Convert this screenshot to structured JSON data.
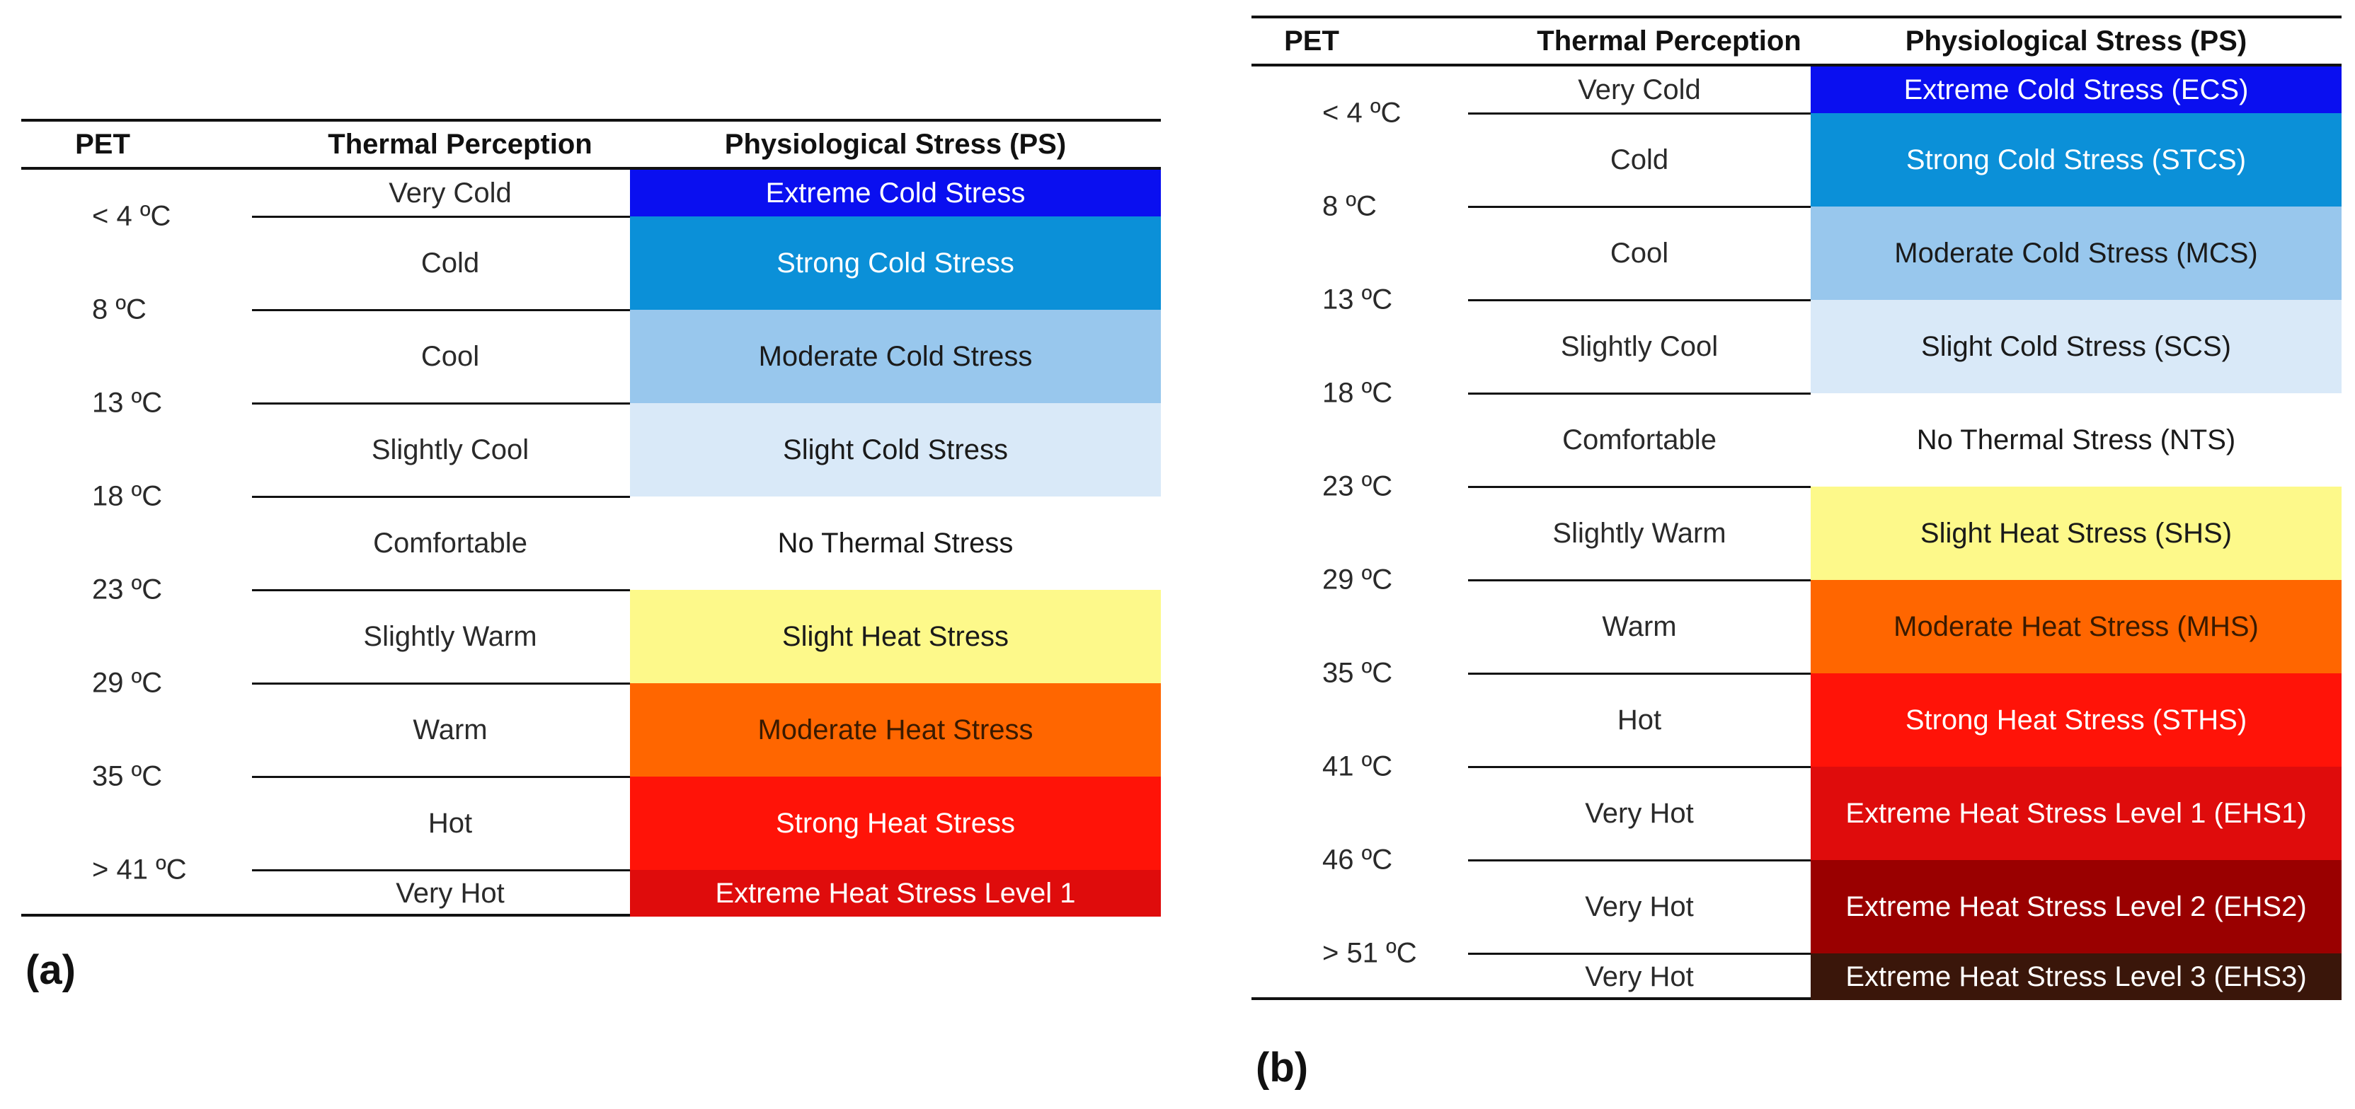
{
  "panel_a": {
    "label": "(a)",
    "headers": {
      "pet": "PET",
      "perception": "Thermal Perception",
      "stress": "Physiological Stress (PS)"
    },
    "rows": [
      {
        "perception": "Very Cold",
        "stress": "Extreme Cold Stress",
        "color": "#0a0ff0",
        "text_color": "#ffffff"
      },
      {
        "perception": "Cold",
        "stress": "Strong Cold Stress",
        "color": "#0b90d8",
        "text_color": "#ffffff"
      },
      {
        "perception": "Cool",
        "stress": "Moderate Cold Stress",
        "color": "#98c7ed",
        "text_color": "#1a1a1a"
      },
      {
        "perception": "Slightly Cool",
        "stress": "Slight Cold Stress",
        "color": "#d9e9f8",
        "text_color": "#1a1a1a"
      },
      {
        "perception": "Comfortable",
        "stress": "No Thermal Stress",
        "color": "#ffffff",
        "text_color": "#1a1a1a"
      },
      {
        "perception": "Slightly Warm",
        "stress": "Slight Heat Stress",
        "color": "#fdf98a",
        "text_color": "#1a1a1a"
      },
      {
        "perception": "Warm",
        "stress": "Moderate Heat Stress",
        "color": "#ff6600",
        "text_color": "#3a1a00"
      },
      {
        "perception": "Hot",
        "stress": "Strong Heat Stress",
        "color": "#ff1308",
        "text_color": "#ffffff"
      },
      {
        "perception": "Very Hot",
        "stress": "Extreme Heat Stress Level 1",
        "color": "#df0c0c",
        "text_color": "#ffffff"
      }
    ],
    "pet_thresholds": [
      "< 4 ºC",
      "8 ºC",
      "13 ºC",
      "18 ºC",
      "23 ºC",
      "29 ºC",
      "35 ºC",
      "> 41 ºC"
    ]
  },
  "panel_b": {
    "label": "(b)",
    "headers": {
      "pet": "PET",
      "perception": "Thermal Perception",
      "stress": "Physiological Stress (PS)"
    },
    "rows": [
      {
        "perception": "Very Cold",
        "stress": "Extreme Cold Stress (ECS)",
        "color": "#0a0ff0",
        "text_color": "#ffffff"
      },
      {
        "perception": "Cold",
        "stress": "Strong Cold Stress (STCS)",
        "color": "#0b90d8",
        "text_color": "#ffffff"
      },
      {
        "perception": "Cool",
        "stress": "Moderate Cold Stress (MCS)",
        "color": "#98c7ed",
        "text_color": "#1a1a1a"
      },
      {
        "perception": "Slightly Cool",
        "stress": "Slight Cold Stress (SCS)",
        "color": "#d9e9f8",
        "text_color": "#1a1a1a"
      },
      {
        "perception": "Comfortable",
        "stress": "No Thermal Stress (NTS)",
        "color": "#ffffff",
        "text_color": "#1a1a1a"
      },
      {
        "perception": "Slightly Warm",
        "stress": "Slight Heat Stress (SHS)",
        "color": "#fdf98a",
        "text_color": "#1a1a1a"
      },
      {
        "perception": "Warm",
        "stress": "Moderate Heat Stress (MHS)",
        "color": "#ff6600",
        "text_color": "#3a1a00"
      },
      {
        "perception": "Hot",
        "stress": "Strong Heat Stress (STHS)",
        "color": "#ff1308",
        "text_color": "#ffffff"
      },
      {
        "perception": "Very Hot",
        "stress": "Extreme Heat Stress Level 1 (EHS1)",
        "color": "#df0c0c",
        "text_color": "#ffffff"
      },
      {
        "perception": "Very Hot",
        "stress": "Extreme Heat Stress Level 2 (EHS2)",
        "color": "#9a0000",
        "text_color": "#ffffff"
      },
      {
        "perception": "Very Hot",
        "stress": "Extreme Heat Stress Level 3 (EHS3)",
        "color": "#3a160a",
        "text_color": "#ffffff"
      }
    ],
    "pet_thresholds": [
      "< 4 ºC",
      "8 ºC",
      "13 ºC",
      "18 ºC",
      "23 ºC",
      "29 ºC",
      "35 ºC",
      "41 ºC",
      "46 ºC",
      "> 51 ºC"
    ]
  }
}
